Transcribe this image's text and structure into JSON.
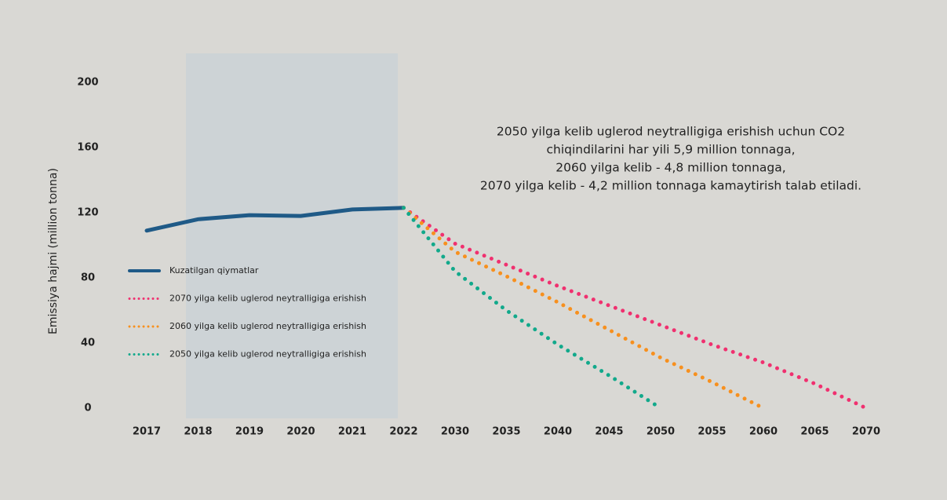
{
  "chart_data": {
    "type": "line",
    "annotation": [
      "2050 yilga kelib uglerod neytralligiga erishish uchun CO2",
      "chiqindilarini har yili 5,9 million tonnaga,",
      "2060 yilga kelib - 4,8 million tonnaga,",
      "2070 yilga kelib - 4,2 million tonnaga kamaytirish talab etiladi."
    ],
    "y_label": "Emissiya hajmi (million tonna)",
    "categories": [
      "2017",
      "2018",
      "2019",
      "2020",
      "2021",
      "2022",
      "2030",
      "2035",
      "2040",
      "2045",
      "2050",
      "2055",
      "2060",
      "2065",
      "2070"
    ],
    "ylim": [
      0,
      200
    ],
    "yticks": [
      0,
      40,
      80,
      120,
      160,
      200
    ],
    "series": [
      {
        "name": "Kuzatilgan qiymatlar",
        "color": "#1f5a87",
        "style": "solid",
        "values": [
          109,
          116,
          118.5,
          118,
          122,
          123,
          null,
          null,
          null,
          null,
          null,
          null,
          null,
          null,
          null
        ]
      },
      {
        "name": "2070 yilga kelib uglerod neytralligiga erishish",
        "color": "#f0306f",
        "style": "dotted",
        "values": [
          null,
          null,
          null,
          null,
          null,
          123,
          101,
          88,
          75,
          63,
          51,
          39,
          28,
          15,
          0
        ]
      },
      {
        "name": "2060 yilga kelib uglerod neytralligiga erishish",
        "color": "#f7901e",
        "style": "dotted",
        "values": [
          null,
          null,
          null,
          null,
          null,
          123,
          96,
          81,
          65,
          48,
          31,
          16,
          0,
          null,
          null
        ]
      },
      {
        "name": "2050 yilga kelib uglerod neytralligiga erishish",
        "color": "#12a98b",
        "style": "dotted",
        "values": [
          null,
          null,
          null,
          null,
          null,
          123,
          84,
          60,
          39,
          20,
          0,
          null,
          null,
          null,
          null
        ]
      }
    ]
  }
}
